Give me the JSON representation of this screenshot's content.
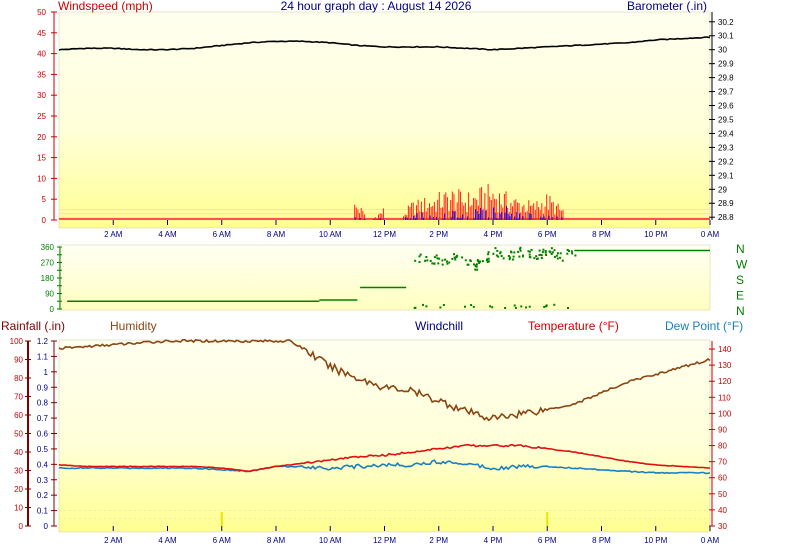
{
  "colors": {
    "windspeed": "#ff2020",
    "gust_blue": "#1010ff",
    "barometer": "#000000",
    "direction": "#008000",
    "humidity": "#8b4513",
    "temperature": "#e01010",
    "dewpoint": "#1a7fbf",
    "rainfall_axis": "#800000",
    "tick_red": "#cc0000",
    "tick_blue": "#000080"
  },
  "chart_data": [
    {
      "type": "line",
      "title": "24 hour graph day : August 14 2026",
      "ylabel": "Windspeed (mph)",
      "y2label": "Barometer (.in)",
      "ylim": [
        0,
        50
      ],
      "y2lim": [
        28.78,
        30.27
      ],
      "yticks": [
        "0",
        "5",
        "10",
        "15",
        "20",
        "25",
        "30",
        "35",
        "40",
        "45",
        "50"
      ],
      "y2ticks": [
        "28.8",
        "28.9",
        "29",
        "29.1",
        "29.2",
        "29.3",
        "29.4",
        "29.5",
        "29.6",
        "29.7",
        "29.8",
        "29.9",
        "30",
        "30.1",
        "30.2"
      ],
      "xticks": [
        "2 AM",
        "4 AM",
        "6 AM",
        "8 AM",
        "10 AM",
        "12 PM",
        "2 PM",
        "4 PM",
        "6 PM",
        "8 PM",
        "10 PM",
        "0 AM"
      ],
      "xlim": [
        0,
        24
      ],
      "grid": false,
      "series": [
        {
          "name": "Barometer (.in)",
          "axis": "right",
          "x": [
            0,
            1,
            2,
            3,
            4,
            5,
            6,
            7,
            8,
            9,
            10,
            11,
            12,
            13,
            14,
            15,
            16,
            17,
            18,
            19,
            20,
            21,
            22,
            23,
            24
          ],
          "values": [
            30.0,
            30.01,
            30.01,
            30.0,
            30.0,
            30.01,
            30.03,
            30.05,
            30.06,
            30.06,
            30.05,
            30.03,
            30.02,
            30.02,
            30.02,
            30.01,
            30.0,
            30.01,
            30.02,
            30.03,
            30.04,
            30.05,
            30.07,
            30.08,
            30.09
          ]
        },
        {
          "name": "Windspeed (mph)",
          "axis": "left",
          "x": [
            11.0,
            11.5,
            12.0,
            12.5,
            13.0,
            13.5,
            14.0,
            14.5,
            15.0,
            15.5,
            16.0,
            16.5,
            17.0,
            17.5,
            18.0,
            18.5
          ],
          "values": [
            4,
            0,
            3,
            0,
            4,
            5,
            6,
            7,
            6,
            7,
            8,
            6,
            5,
            4,
            6,
            3
          ]
        }
      ]
    },
    {
      "type": "scatter",
      "ylabel": "Wind direction",
      "ylim": [
        0,
        360
      ],
      "yticks": [
        "0",
        "45",
        "90",
        "135",
        "180",
        "225",
        "270",
        "315",
        "360"
      ],
      "compass": [
        "N",
        "W",
        "S",
        "E",
        "N"
      ],
      "xlim": [
        0,
        24
      ],
      "series": [
        {
          "name": "Wind direction",
          "x": [
            0,
            2,
            4,
            6,
            8,
            9,
            10,
            11,
            11.5,
            12,
            12.5,
            13,
            13.5,
            14,
            14.5,
            15,
            15.5,
            16,
            16.5,
            17,
            17.5,
            18,
            18.5,
            19,
            20,
            21,
            22,
            23,
            24
          ],
          "values": [
            45,
            45,
            45,
            45,
            45,
            45,
            50,
            55,
            125,
            125,
            130,
            300,
            290,
            285,
            290,
            270,
            250,
            340,
            300,
            330,
            310,
            340,
            300,
            330,
            340,
            340,
            340,
            340,
            340
          ]
        }
      ]
    },
    {
      "type": "line",
      "ylabel": "Rainfall (.in)",
      "ylim": [
        0,
        1.2
      ],
      "yticks": [
        "0",
        "0.1",
        "0.2",
        "0.3",
        "0.4",
        "0.5",
        "0.6",
        "0.7",
        "0.8",
        "0.9",
        "1",
        "1.1",
        "1.2"
      ],
      "y2ticks": [
        "0",
        "10",
        "20",
        "30",
        "40",
        "50",
        "60",
        "70",
        "80",
        "90",
        "100"
      ],
      "y3ticks": [
        "30",
        "40",
        "50",
        "60",
        "70",
        "80",
        "90",
        "100",
        "110",
        "120",
        "130",
        "140"
      ],
      "xticks": [
        "2 AM",
        "4 AM",
        "6 AM",
        "8 AM",
        "10 AM",
        "12 PM",
        "2 PM",
        "4 PM",
        "6 PM",
        "8 PM",
        "10 PM",
        "0 AM"
      ],
      "xlim": [
        0,
        24
      ],
      "labels": {
        "rainfall": "Rainfall (.in)",
        "humidity": "Humidity",
        "windchill": "Windchill",
        "temperature": "Temperature (°F)",
        "dewpoint": "Dew Point (°F)"
      },
      "series": [
        {
          "name": "Humidity",
          "axis": "humidity",
          "x": [
            0,
            1,
            2,
            3,
            4,
            5,
            6,
            7,
            8,
            8.5,
            9,
            10,
            11,
            12,
            13,
            13.5,
            14,
            15,
            16,
            17,
            18,
            19,
            20,
            21,
            22,
            23,
            24
          ],
          "values": [
            96,
            97,
            98,
            99,
            100,
            100,
            100,
            100,
            100,
            100,
            96,
            86,
            80,
            75,
            73,
            70,
            68,
            62,
            58,
            61,
            63,
            66,
            72,
            78,
            82,
            86,
            90
          ]
        },
        {
          "name": "Temperature (°F)",
          "axis": "temperature",
          "x": [
            0,
            1,
            2,
            3,
            4,
            5,
            6,
            7,
            8,
            9,
            10,
            11,
            12,
            13,
            14,
            15,
            16,
            17,
            18,
            19,
            20,
            21,
            22,
            23,
            24
          ],
          "values": [
            68,
            67,
            67,
            67,
            67,
            67,
            66,
            64,
            67,
            69,
            71,
            73,
            74,
            76,
            78,
            80,
            80,
            80,
            78,
            76,
            73,
            70,
            68,
            67,
            66
          ]
        },
        {
          "name": "Dew Point (°F)",
          "axis": "temperature",
          "x": [
            0,
            1,
            2,
            3,
            4,
            5,
            6,
            7,
            8,
            9,
            10,
            11,
            12,
            13,
            14,
            15,
            16,
            17,
            18,
            19,
            20,
            21,
            22,
            23,
            24
          ],
          "values": [
            66,
            66,
            66,
            66,
            66,
            66,
            65,
            64,
            67,
            67,
            66,
            67,
            68,
            68,
            70,
            69,
            66,
            67,
            67,
            66,
            65,
            64,
            63,
            63,
            63
          ]
        }
      ]
    }
  ]
}
